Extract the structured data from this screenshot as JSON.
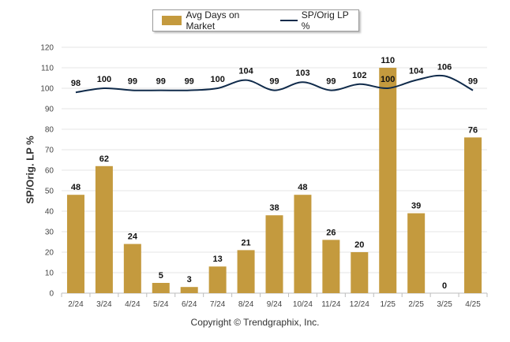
{
  "legend": {
    "bar_label": "Avg Days on Market",
    "line_label": "SP/Orig LP %"
  },
  "y_axis_title": "SP/Orig. LP %",
  "copyright": "Copyright © Trendgraphix, Inc.",
  "colors": {
    "bar": "#C49A3E",
    "line": "#0F2A4A",
    "grid": "#E6E6E6"
  },
  "chart_data": {
    "type": "bar",
    "categories": [
      "2/24",
      "3/24",
      "4/24",
      "5/24",
      "6/24",
      "7/24",
      "8/24",
      "9/24",
      "10/24",
      "11/24",
      "12/24",
      "1/25",
      "2/25",
      "3/25",
      "4/25"
    ],
    "series": [
      {
        "name": "Avg Days on Market",
        "type": "bar",
        "values": [
          48,
          62,
          24,
          5,
          3,
          13,
          21,
          38,
          48,
          26,
          20,
          110,
          39,
          0,
          76
        ]
      },
      {
        "name": "SP/Orig LP %",
        "type": "line",
        "values": [
          98,
          100,
          99,
          99,
          99,
          100,
          104,
          99,
          103,
          99,
          102,
          100,
          104,
          106,
          99
        ]
      }
    ],
    "ylabel": "SP/Orig. LP %",
    "ylim": [
      0,
      120
    ],
    "yticks": [
      0,
      10,
      20,
      30,
      40,
      50,
      60,
      70,
      80,
      90,
      100,
      110,
      120
    ],
    "grid": true,
    "legend": "top-center"
  }
}
